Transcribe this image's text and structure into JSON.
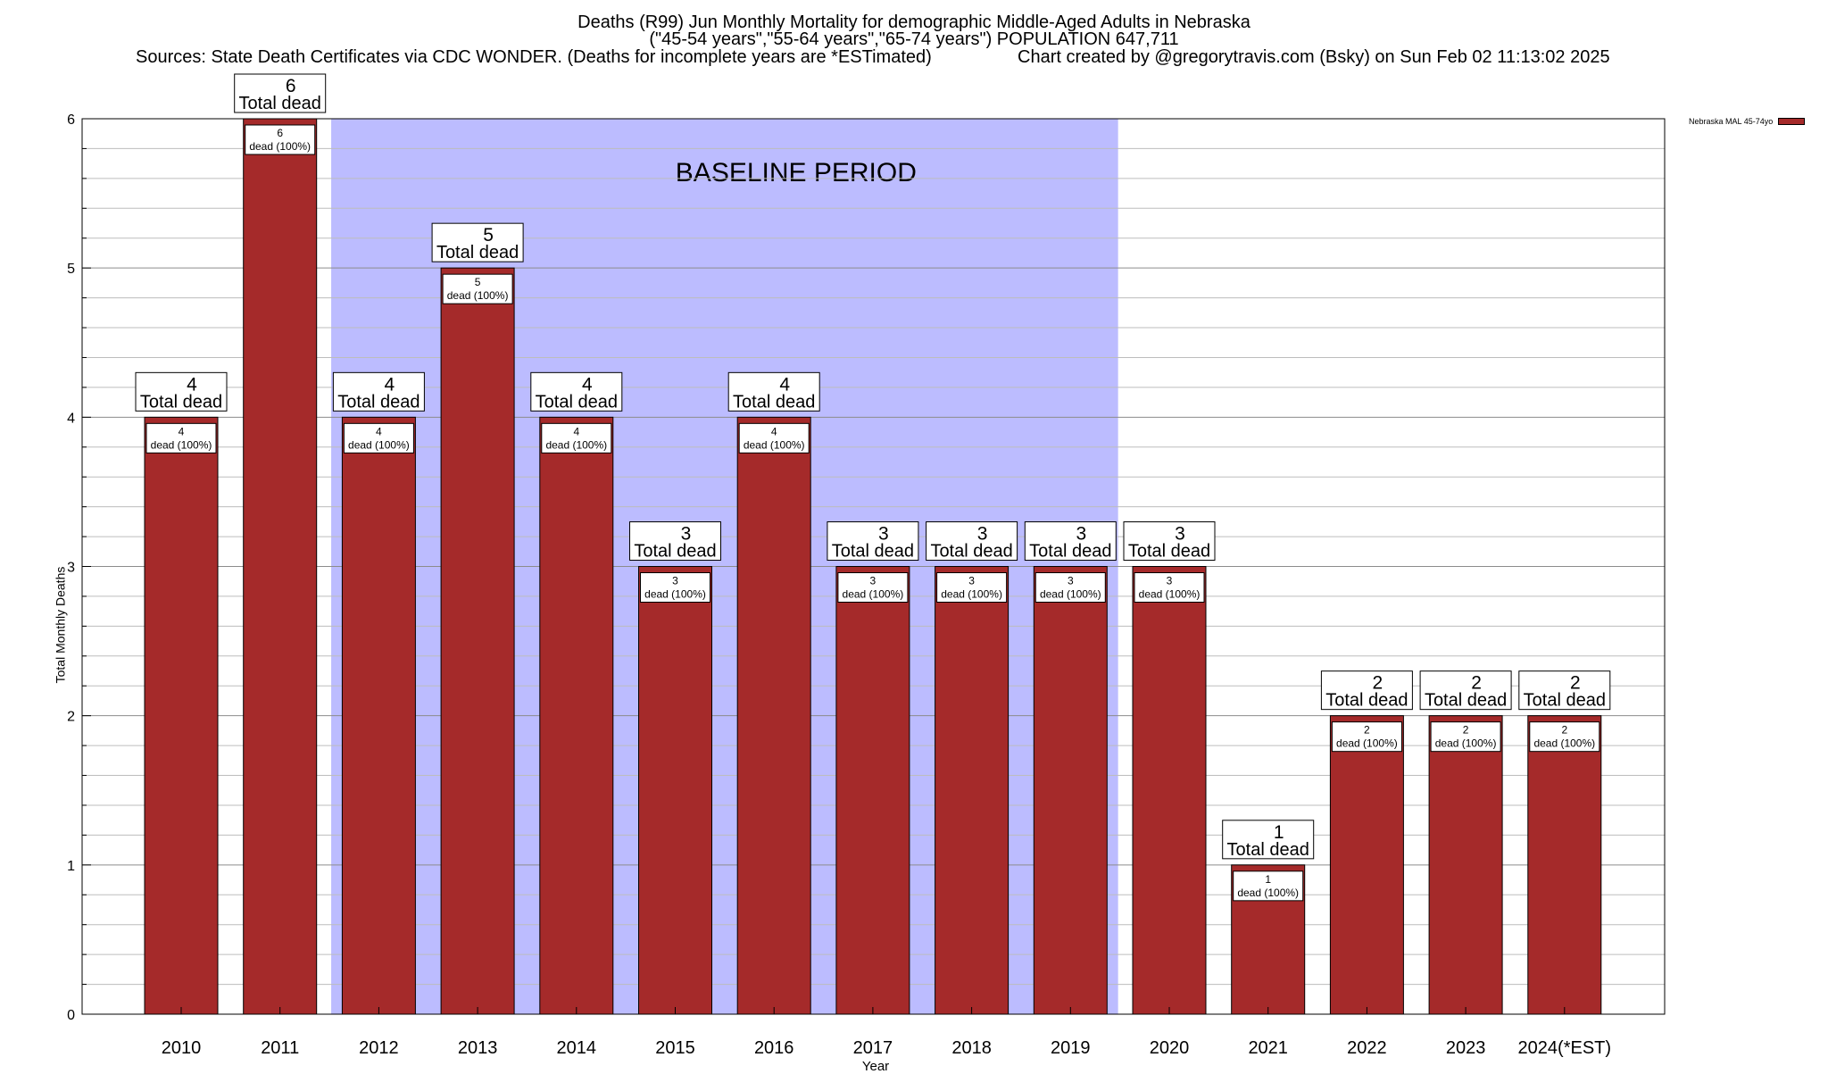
{
  "header": {
    "title_line1": "Deaths (R99) Jun Monthly Mortality for demographic Middle-Aged Adults in Nebraska",
    "title_line2": "(\"45-54 years\",\"55-64 years\",\"65-74 years\") POPULATION 647,711",
    "sources": "Sources: State Death Certificates via CDC WONDER. (Deaths for incomplete years are *ESTimated)",
    "credit": "Chart created by @gregorytravis.com (Bsky) on Sun Feb 02 11:13:02 2025"
  },
  "chart_data": {
    "type": "bar",
    "xlabel": "Year",
    "ylabel": "Total Monthly Deaths",
    "ylim": [
      0,
      6
    ],
    "yticks": [
      0,
      1,
      2,
      3,
      4,
      5,
      6
    ],
    "grid": true,
    "legend_placement": "top-right, outside plot",
    "categories": [
      "2010",
      "2011",
      "2012",
      "2013",
      "2014",
      "2015",
      "2016",
      "2017",
      "2018",
      "2019",
      "2020",
      "2021",
      "2022",
      "2023",
      "2024(*EST)"
    ],
    "series": [
      {
        "name": "Nebraska MAL 45-74yo",
        "color": "#a52a2a",
        "values": [
          4,
          6,
          4,
          5,
          4,
          3,
          4,
          3,
          3,
          3,
          3,
          1,
          2,
          2,
          2
        ]
      }
    ],
    "top_label_suffix": "Total dead",
    "inner_label_suffix": "dead (100%)",
    "baseline": {
      "label": "BASELINE PERIOD",
      "from": "2012",
      "to": "2019",
      "color": "#bcbcff"
    }
  }
}
